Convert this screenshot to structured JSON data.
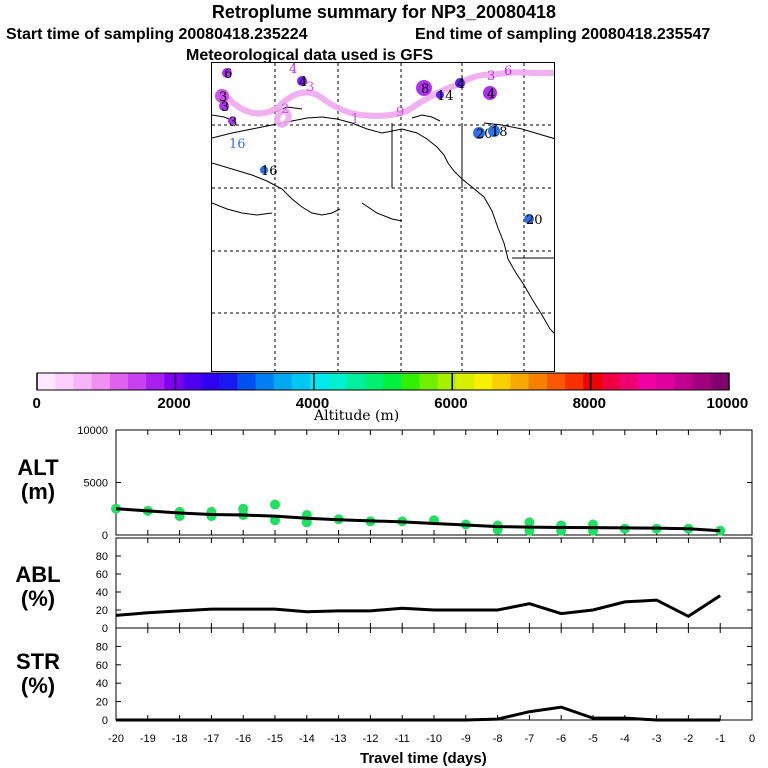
{
  "header": {
    "title": "Retroplume summary for NP3_20080418",
    "start": "Start time of sampling 20080418.235224",
    "end": "End time of sampling 20080418.235547",
    "met": "Meteorological data used is GFS"
  },
  "map": {
    "plume_color": "#f0a8f0",
    "markers": [
      {
        "label": "6",
        "color": "#b030f0"
      },
      {
        "label": "3",
        "color": "#d050f0"
      },
      {
        "label": "3",
        "color": "#b030f0"
      },
      {
        "label": "3",
        "color": "#b030f0"
      },
      {
        "label": "4",
        "color": "#b030f0"
      },
      {
        "label": "4",
        "color": "#8020f0"
      },
      {
        "label": "3",
        "color": "#d050f0"
      },
      {
        "label": "2",
        "color": "#d050f0"
      },
      {
        "label": "1",
        "color": "#d050f0"
      },
      {
        "label": "9",
        "color": "#d050f0"
      },
      {
        "label": "8",
        "color": "#b030f0"
      },
      {
        "label": "14",
        "color": "#6020f0"
      },
      {
        "label": "4",
        "color": "#6020f0"
      },
      {
        "label": "6",
        "color": "#b030f0"
      },
      {
        "label": "4",
        "color": "#b030f0"
      },
      {
        "label": "3",
        "color": "#b030f0"
      },
      {
        "label": "20",
        "color": "#3070e0"
      },
      {
        "label": "18",
        "color": "#3070e0"
      },
      {
        "label": "16",
        "color": "#3070e0"
      },
      {
        "label": "16",
        "color": "#3070e0"
      },
      {
        "label": "20",
        "color": "#3070e0"
      }
    ]
  },
  "colorbar": {
    "title": "Altitude (m)",
    "tick_labels": [
      "0",
      "2000",
      "4000",
      "6000",
      "8000",
      "10000"
    ],
    "range": [
      0,
      10000
    ],
    "colors": [
      "#ffe8ff",
      "#fcd0fc",
      "#f8b4f8",
      "#f090f0",
      "#e060f0",
      "#c840f0",
      "#a820f0",
      "#8000f0",
      "#5000f0",
      "#3000f0",
      "#1818f0",
      "#0050f0",
      "#0080f0",
      "#00a8f0",
      "#00c8f0",
      "#00e8f0",
      "#00f0d0",
      "#00f0a0",
      "#00f070",
      "#00f040",
      "#30f000",
      "#70f000",
      "#a8f000",
      "#d8f000",
      "#f8f000",
      "#f8d000",
      "#f8a800",
      "#f88000",
      "#f85800",
      "#f83000",
      "#f00000",
      "#f00040",
      "#f00070",
      "#f000a0",
      "#e000a0",
      "#c00090",
      "#a00080",
      "#800070"
    ]
  },
  "chart_data": [
    {
      "type": "line",
      "name": "ALT",
      "ylabel": "ALT\n(m)",
      "ylabel_lines": [
        "ALT",
        "(m)"
      ],
      "xlabel": "Travel time (days)",
      "xlim": [
        -20,
        0
      ],
      "ylim": [
        0,
        10000
      ],
      "yticks": [
        0,
        5000,
        10000
      ],
      "x": [
        -20,
        -19,
        -18,
        -17,
        -16,
        -15,
        -14,
        -13,
        -12,
        -11,
        -10,
        -9,
        -8,
        -7,
        -6,
        -5,
        -4,
        -3,
        -2,
        -1
      ],
      "line": [
        2500,
        2300,
        2100,
        1950,
        1900,
        1800,
        1600,
        1450,
        1350,
        1250,
        1100,
        950,
        800,
        750,
        720,
        700,
        680,
        650,
        600,
        400
      ],
      "points": [
        {
          "x": -20,
          "y": 2500
        },
        {
          "x": -19,
          "y": 2300
        },
        {
          "x": -18,
          "y": 2200
        },
        {
          "x": -18,
          "y": 1800
        },
        {
          "x": -17,
          "y": 2200
        },
        {
          "x": -17,
          "y": 1800
        },
        {
          "x": -16,
          "y": 2500
        },
        {
          "x": -16,
          "y": 1900
        },
        {
          "x": -15,
          "y": 2900
        },
        {
          "x": -15,
          "y": 1400
        },
        {
          "x": -14,
          "y": 1900
        },
        {
          "x": -14,
          "y": 1200
        },
        {
          "x": -13,
          "y": 1500
        },
        {
          "x": -12,
          "y": 1300
        },
        {
          "x": -11,
          "y": 1300
        },
        {
          "x": -10,
          "y": 1400
        },
        {
          "x": -9,
          "y": 1000
        },
        {
          "x": -8,
          "y": 900
        },
        {
          "x": -8,
          "y": 500
        },
        {
          "x": -7,
          "y": 1200
        },
        {
          "x": -7,
          "y": 400
        },
        {
          "x": -6,
          "y": 900
        },
        {
          "x": -6,
          "y": 400
        },
        {
          "x": -5,
          "y": 1000
        },
        {
          "x": -5,
          "y": 400
        },
        {
          "x": -4,
          "y": 600
        },
        {
          "x": -3,
          "y": 600
        },
        {
          "x": -2,
          "y": 600
        },
        {
          "x": -1,
          "y": 400
        }
      ],
      "point_color": "#20e060"
    },
    {
      "type": "line",
      "name": "ABL",
      "ylabel_lines": [
        "ABL",
        "(%)"
      ],
      "ylim": [
        0,
        100
      ],
      "yticks": [
        0,
        20,
        40,
        60,
        80
      ],
      "x": [
        -20,
        -19,
        -18,
        -17,
        -16,
        -15,
        -14,
        -13,
        -12,
        -11,
        -10,
        -9,
        -8,
        -7,
        -6,
        -5,
        -4,
        -3,
        -2,
        -1
      ],
      "line": [
        14,
        17,
        19,
        21,
        21,
        21,
        18,
        19,
        19,
        22,
        20,
        20,
        20,
        27,
        16,
        20,
        29,
        31,
        13,
        36
      ]
    },
    {
      "type": "line",
      "name": "STR",
      "ylabel_lines": [
        "STR",
        "(%)"
      ],
      "ylim": [
        0,
        100
      ],
      "yticks": [
        0,
        20,
        40,
        60,
        80
      ],
      "x": [
        -20,
        -19,
        -18,
        -17,
        -16,
        -15,
        -14,
        -13,
        -12,
        -11,
        -10,
        -9,
        -8,
        -7,
        -6,
        -5,
        -4,
        -3,
        -2,
        -1
      ],
      "line": [
        0,
        0,
        0,
        0,
        0,
        0,
        0,
        0,
        0,
        0,
        0,
        0,
        1,
        9,
        14,
        2,
        2,
        0,
        0,
        0
      ],
      "xticks": [
        -20,
        -19,
        -18,
        -17,
        -16,
        -15,
        -14,
        -13,
        -12,
        -11,
        -10,
        -9,
        -8,
        -7,
        -6,
        -5,
        -4,
        -3,
        -2,
        -1,
        0
      ]
    }
  ]
}
